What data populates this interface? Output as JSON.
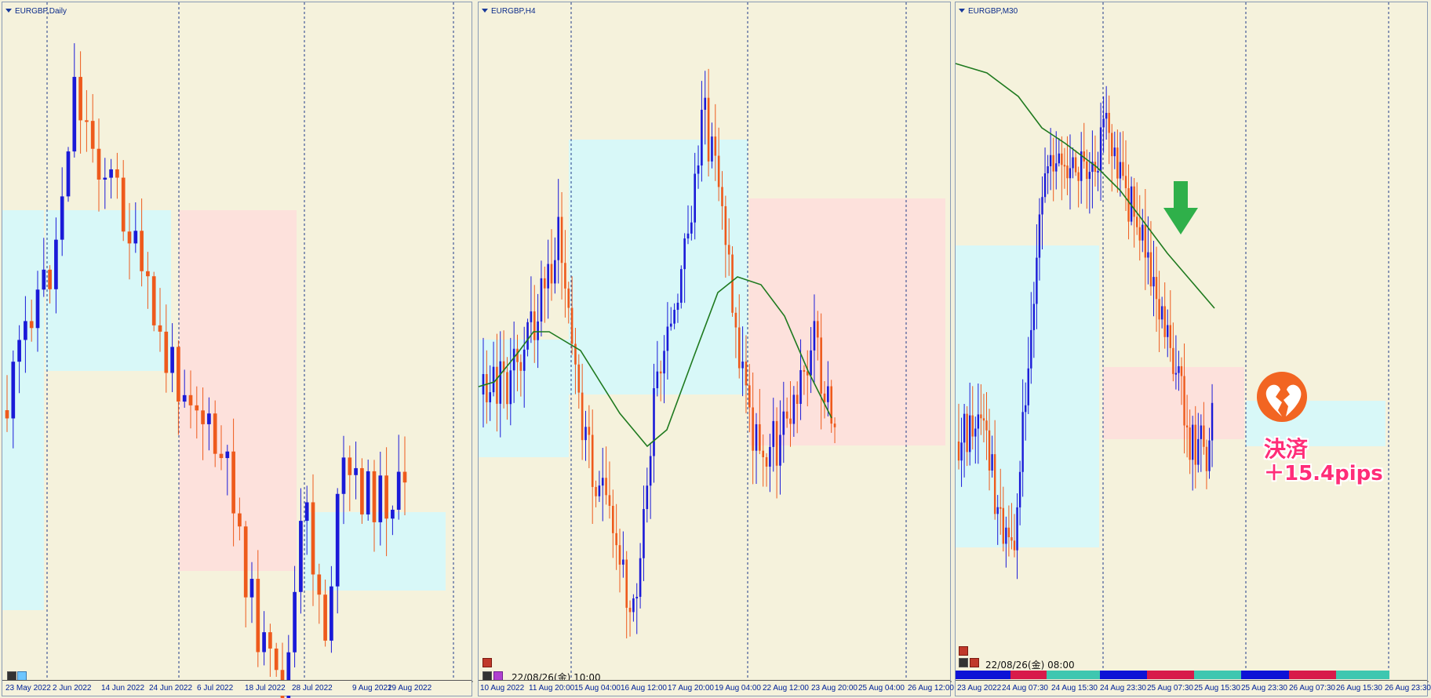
{
  "colors": {
    "background": "#f5f2dc",
    "bull_candle": "#1a1ad8",
    "bear_candle": "#ee5a1c",
    "support_zone": "#d8f8f8",
    "resistance_zone": "#fde1dc",
    "moving_average": "#1f7a1f",
    "grid_line": "#1e3a8a",
    "signal_arrow": "#2fb04a",
    "settle_badge": "#f26522",
    "settle_text": "#ff2d78"
  },
  "panels": [
    {
      "title": "EURGBP,Daily",
      "x_labels": [
        "23 May 2022",
        "2 Jun 2022",
        "14 Jun 2022",
        "24 Jun 2022",
        "6 Jul 2022",
        "18 Jul 2022",
        "28 Jul 2022",
        "9 Aug 2022",
        "19 Aug 2022"
      ]
    },
    {
      "title": "EURGBP,H4",
      "timestamp": "22/08/26(金) 10:00",
      "x_labels": [
        "10 Aug 2022",
        "11 Aug 20:00",
        "15 Aug 04:00",
        "16 Aug 12:00",
        "17 Aug 20:00",
        "19 Aug 04:00",
        "22 Aug 12:00",
        "23 Aug 20:00",
        "25 Aug 04:00",
        "26 Aug 12:00"
      ]
    },
    {
      "title": "EURGBP,M30",
      "timestamp": "22/08/26(金) 08:00",
      "x_labels": [
        "23 Aug 2022",
        "24 Aug 07:30",
        "24 Aug 15:30",
        "24 Aug 23:30",
        "25 Aug 07:30",
        "25 Aug 15:30",
        "25 Aug 23:30",
        "26 Aug 07:30",
        "26 Aug 15:30",
        "26 Aug 23:30"
      ]
    }
  ],
  "annotation": {
    "settle_title": "決済",
    "settle_value": "＋15.4pips",
    "icon": "broken-heart-icon",
    "arrow_icon": "down-arrow-icon"
  },
  "strength_bar": [
    "blue",
    "red",
    "teal",
    "blue",
    "red",
    "teal",
    "blue",
    "red",
    "teal"
  ]
}
